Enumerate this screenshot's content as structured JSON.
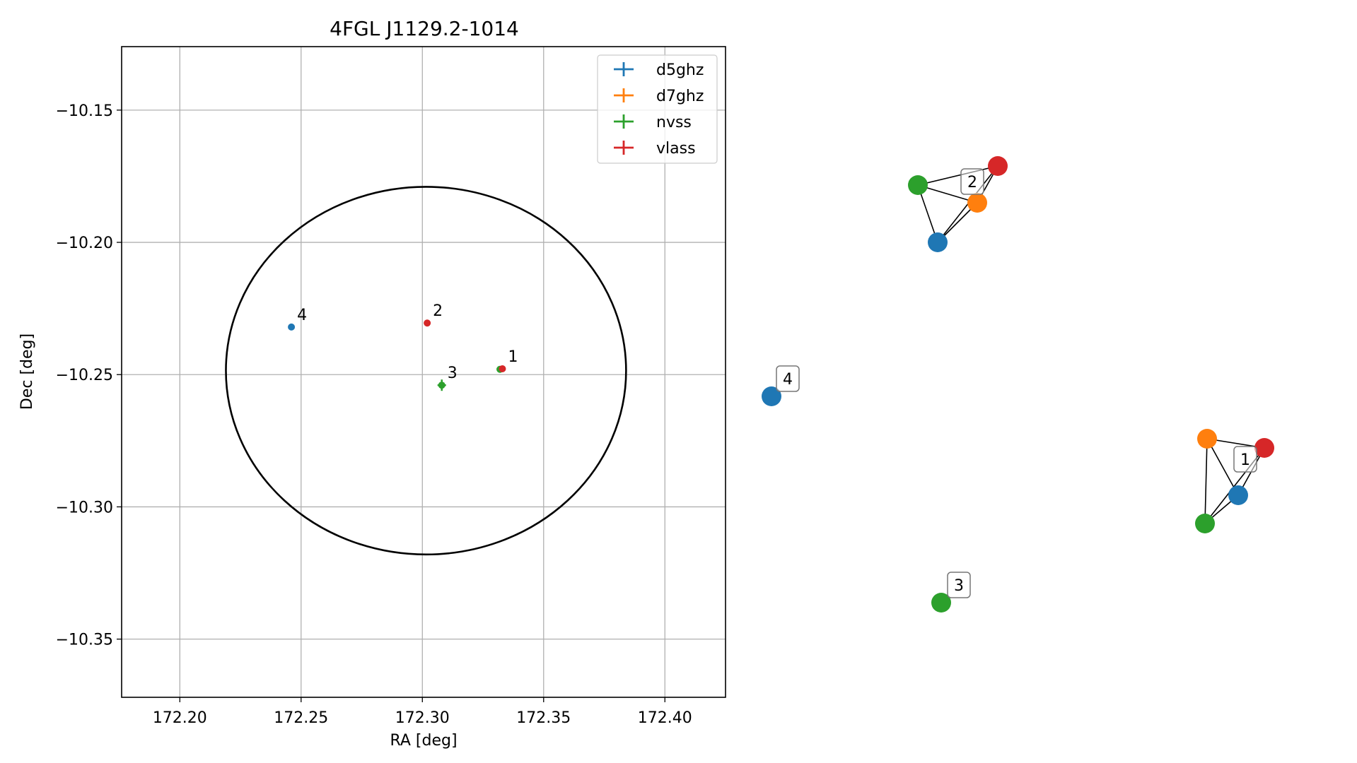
{
  "chart_data": [
    {
      "type": "scatter",
      "title": "4FGL J1129.2-1014",
      "xlabel": "RA [deg]",
      "ylabel": "Dec [deg]",
      "xlim": [
        172.176,
        172.425
      ],
      "ylim": [
        -10.372,
        -10.126
      ],
      "xticks": [
        172.2,
        172.25,
        172.3,
        172.35,
        172.4
      ],
      "xtick_labels": [
        "172.20",
        "172.25",
        "172.30",
        "172.35",
        "172.40"
      ],
      "yticks": [
        -10.15,
        -10.2,
        -10.25,
        -10.3,
        -10.35
      ],
      "ytick_labels": [
        "−10.15",
        "−10.20",
        "−10.25",
        "−10.30",
        "−10.35"
      ],
      "grid": true,
      "legend_position": "top-right",
      "series": [
        {
          "name": "d5ghz",
          "color": "#1f77b4",
          "points": [
            {
              "x": 172.246,
              "y": -10.232,
              "label": "4"
            }
          ]
        },
        {
          "name": "d7ghz",
          "color": "#ff7f0e",
          "points": []
        },
        {
          "name": "nvss",
          "color": "#2ca02c",
          "points": [
            {
              "x": 172.308,
              "y": -10.254,
              "label": "3"
            },
            {
              "x": 172.332,
              "y": -10.248,
              "label": ""
            }
          ]
        },
        {
          "name": "vlass",
          "color": "#d62728",
          "points": [
            {
              "x": 172.302,
              "y": -10.2305,
              "label": "2"
            },
            {
              "x": 172.333,
              "y": -10.2478,
              "label": "1"
            }
          ]
        }
      ],
      "ellipse": {
        "center": [
          172.3015,
          -10.2485
        ],
        "ra_semi_axis": 0.0825,
        "dec_semi_axis": 0.0695,
        "color": "#000000"
      }
    },
    {
      "type": "network",
      "groups": [
        {
          "label": "2",
          "nodes": [
            {
              "color": "#2ca02c"
            },
            {
              "color": "#d62728"
            },
            {
              "color": "#ff7f0e"
            },
            {
              "color": "#1f77b4"
            }
          ]
        },
        {
          "label": "4",
          "nodes": [
            {
              "color": "#1f77b4"
            }
          ]
        },
        {
          "label": "1",
          "nodes": [
            {
              "color": "#ff7f0e"
            },
            {
              "color": "#d62728"
            },
            {
              "color": "#1f77b4"
            },
            {
              "color": "#2ca02c"
            }
          ]
        },
        {
          "label": "3",
          "nodes": [
            {
              "color": "#2ca02c"
            }
          ]
        }
      ]
    }
  ]
}
